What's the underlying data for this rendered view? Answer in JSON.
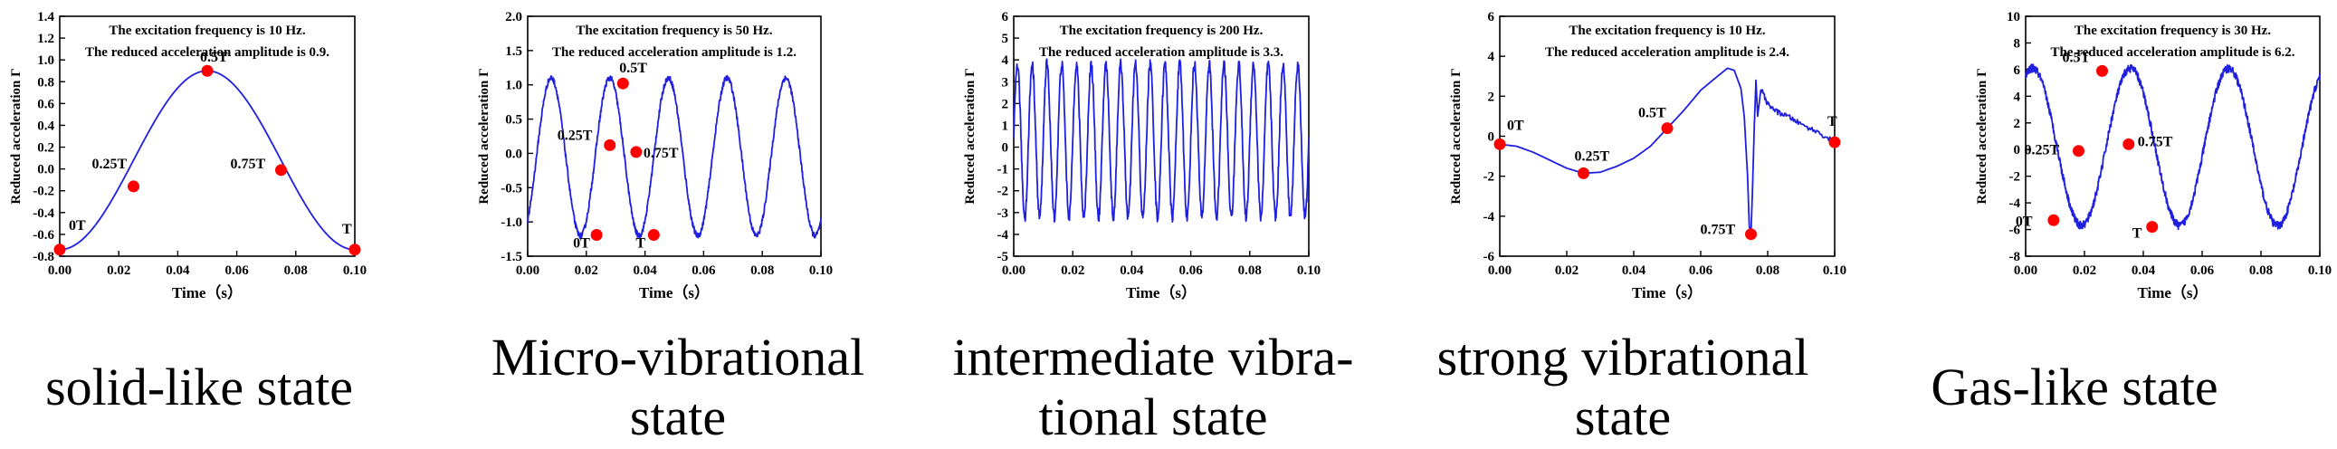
{
  "charts": [
    {
      "type": "line",
      "title_line1": "The excitation frequency is 10 Hz.",
      "title_line2": "The reduced acceleration amplitude is 0.9.",
      "xlabel": "Time（s）",
      "ylabel": "Reduced acceleration Γ",
      "xlim": [
        0,
        0.1
      ],
      "ylim": [
        -0.8,
        1.4
      ],
      "xticks": [
        "0.00",
        "0.02",
        "0.04",
        "0.06",
        "0.08",
        "0.10"
      ],
      "yticks": [
        "-0.8",
        "-0.6",
        "-0.4",
        "-0.2",
        "0.0",
        "0.2",
        "0.4",
        "0.6",
        "0.8",
        "1.0",
        "1.2",
        "1.4"
      ],
      "caption_lines": [
        "solid-like state"
      ],
      "chart_data": {
        "type": "line",
        "series_name": "reduced acceleration",
        "frequency_hz": 10,
        "amplitude": 0.9,
        "waveform": {
          "shape": "sine",
          "offset": 0.08,
          "amp": 0.82,
          "cycles": 1,
          "phase": -0.25,
          "noise": 0.0
        },
        "points": [
          {
            "label": "0T",
            "x": 0.0,
            "y": -0.74
          },
          {
            "label": "0.25T",
            "x": 0.025,
            "y": -0.16
          },
          {
            "label": "0.5T",
            "x": 0.05,
            "y": 0.9
          },
          {
            "label": "0.75T",
            "x": 0.075,
            "y": -0.01
          },
          {
            "label": "T",
            "x": 0.1,
            "y": -0.74
          }
        ]
      }
    },
    {
      "type": "line",
      "title_line1": "The excitation frequency is 50 Hz.",
      "title_line2": "The reduced acceleration amplitude is 1.2.",
      "xlabel": "Time（s）",
      "ylabel": "Reduced acceleration Γ",
      "xlim": [
        0,
        0.1
      ],
      "ylim": [
        -1.5,
        2.0
      ],
      "xticks": [
        "0.00",
        "0.02",
        "0.04",
        "0.06",
        "0.08",
        "0.10"
      ],
      "yticks": [
        "-1.5",
        "-1.0",
        "-0.5",
        "0.0",
        "0.5",
        "1.0",
        "1.5",
        "2.0"
      ],
      "caption_lines": [
        "Micro-vibrational",
        "state"
      ],
      "chart_data": {
        "type": "line",
        "series_name": "reduced acceleration",
        "frequency_hz": 50,
        "amplitude": 1.2,
        "waveform": {
          "shape": "sine",
          "offset": -0.05,
          "amp": 1.15,
          "cycles": 5,
          "phase": -0.15,
          "noise": 0.04
        },
        "points": [
          {
            "label": "0T",
            "x": 0.0235,
            "y": -1.19
          },
          {
            "label": "0.25T",
            "x": 0.028,
            "y": 0.12
          },
          {
            "label": "0.5T",
            "x": 0.0325,
            "y": 1.02
          },
          {
            "label": "0.75T",
            "x": 0.037,
            "y": 0.02
          },
          {
            "label": "T",
            "x": 0.043,
            "y": -1.19
          }
        ]
      }
    },
    {
      "type": "line",
      "title_line1": "The excitation frequency is 200 Hz.",
      "title_line2": "The reduced acceleration amplitude is 3.3.",
      "xlabel": "Time（s）",
      "ylabel": "Reduced acceleration Γ",
      "xlim": [
        0,
        0.1
      ],
      "ylim": [
        -5,
        6
      ],
      "xticks": [
        "0.00",
        "0.02",
        "0.04",
        "0.06",
        "0.08",
        "0.10"
      ],
      "yticks": [
        "-5",
        "-4",
        "-3",
        "-2",
        "-1",
        "0",
        "1",
        "2",
        "3",
        "4",
        "5",
        "6"
      ],
      "caption_lines": [
        "intermediate vibra-",
        "tional state"
      ],
      "chart_data": {
        "type": "line",
        "series_name": "reduced acceleration",
        "frequency_hz": 200,
        "amplitude": 3.3,
        "waveform": {
          "shape": "sine",
          "offset": 0.3,
          "amp": 3.5,
          "cycles": 20,
          "phase": 0.0,
          "noise": 0.25
        },
        "points": []
      }
    },
    {
      "type": "line",
      "title_line1": "The excitation frequency is 10 Hz.",
      "title_line2": "The reduced acceleration amplitude is 2.4.",
      "xlabel": "Time（s）",
      "ylabel": "Reduced acceleration Γ",
      "xlim": [
        0,
        0.1
      ],
      "ylim": [
        -6,
        6
      ],
      "xticks": [
        "0.00",
        "0.02",
        "0.04",
        "0.06",
        "0.08",
        "0.10"
      ],
      "yticks": [
        "-6",
        "-4",
        "-2",
        "0",
        "2",
        "4",
        "6"
      ],
      "caption_lines": [
        "strong vibrational",
        "state"
      ],
      "chart_data": {
        "type": "line",
        "series_name": "reduced acceleration",
        "frequency_hz": 10,
        "amplitude": 2.4,
        "waveform": {
          "shape": "custom",
          "noise": 0.12
        },
        "trace": [
          [
            0.0,
            -0.4
          ],
          [
            0.005,
            -0.5
          ],
          [
            0.01,
            -0.8
          ],
          [
            0.015,
            -1.2
          ],
          [
            0.02,
            -1.6
          ],
          [
            0.025,
            -1.85
          ],
          [
            0.03,
            -1.8
          ],
          [
            0.035,
            -1.5
          ],
          [
            0.04,
            -1.1
          ],
          [
            0.045,
            -0.5
          ],
          [
            0.05,
            0.4
          ],
          [
            0.055,
            1.3
          ],
          [
            0.06,
            2.3
          ],
          [
            0.065,
            3.0
          ],
          [
            0.068,
            3.4
          ],
          [
            0.07,
            3.3
          ],
          [
            0.072,
            2.4
          ],
          [
            0.073,
            1.0
          ],
          [
            0.074,
            -2.0
          ],
          [
            0.0745,
            -4.5
          ],
          [
            0.075,
            -4.9
          ],
          [
            0.0755,
            -2.5
          ],
          [
            0.076,
            0.5
          ],
          [
            0.0765,
            2.8
          ],
          [
            0.077,
            1.0
          ],
          [
            0.078,
            2.4
          ],
          [
            0.08,
            1.6
          ],
          [
            0.083,
            1.2
          ],
          [
            0.086,
            1.0
          ],
          [
            0.09,
            0.6
          ],
          [
            0.095,
            0.2
          ],
          [
            0.1,
            -0.3
          ]
        ],
        "points": [
          {
            "label": "0T",
            "x": 0.0,
            "y": -0.4
          },
          {
            "label": "0.25T",
            "x": 0.025,
            "y": -1.85
          },
          {
            "label": "0.5T",
            "x": 0.05,
            "y": 0.4
          },
          {
            "label": "0.75T",
            "x": 0.075,
            "y": -4.9
          },
          {
            "label": "T",
            "x": 0.1,
            "y": -0.3
          }
        ]
      }
    },
    {
      "type": "line",
      "title_line1": "The excitation frequency is 30 Hz.",
      "title_line2": "The reduced acceleration amplitude is 6.2.",
      "xlabel": "Time（s）",
      "ylabel": "Reduced acceleration Γ",
      "xlim": [
        0,
        0.1
      ],
      "ylim": [
        -8,
        10
      ],
      "xticks": [
        "0.00",
        "0.02",
        "0.04",
        "0.06",
        "0.08",
        "0.10"
      ],
      "yticks": [
        "-8",
        "-6",
        "-4",
        "-2",
        "0",
        "2",
        "4",
        "6",
        "8",
        "10"
      ],
      "caption_lines": [
        "Gas-like state"
      ],
      "chart_data": {
        "type": "line",
        "series_name": "reduced acceleration",
        "frequency_hz": 30,
        "amplitude": 6.2,
        "waveform": {
          "shape": "sine",
          "offset": 0.2,
          "amp": 5.9,
          "cycles": 3,
          "phase": 0.18,
          "noise": 0.3
        },
        "points": [
          {
            "label": "0T",
            "x": 0.0095,
            "y": -5.3
          },
          {
            "label": "0.25T",
            "x": 0.018,
            "y": -0.1
          },
          {
            "label": "0.5T",
            "x": 0.026,
            "y": 5.9
          },
          {
            "label": "0.75T",
            "x": 0.035,
            "y": 0.4
          },
          {
            "label": "T",
            "x": 0.043,
            "y": -5.8
          }
        ]
      }
    }
  ],
  "colors": {
    "line": "#1f1fe0",
    "marker": "#ff0000",
    "axis": "#000000"
  }
}
